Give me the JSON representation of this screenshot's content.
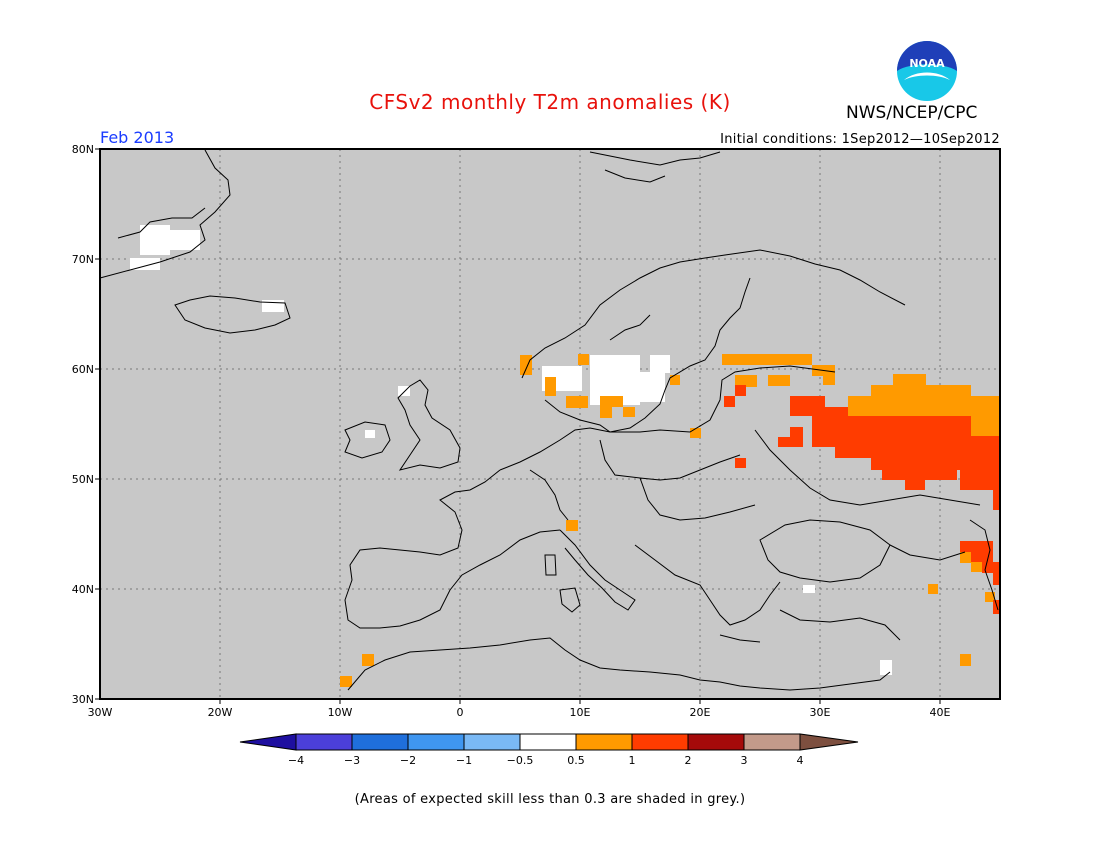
{
  "title": "CFSv2 monthly T2m anomalies (K)",
  "agency": "NWS/NCEP/CPC",
  "logo_text": "NOAA",
  "month": "Feb 2013",
  "initial_conditions": "Initial conditions: 1Sep2012—10Sep2012",
  "footnote": "(Areas of expected skill less than 0.3 are shaded in grey.)",
  "map": {
    "lon_range": [
      -30,
      45
    ],
    "lat_range": [
      30,
      80
    ],
    "lat_labels": [
      "30N",
      "40N",
      "50N",
      "60N",
      "70N",
      "80N"
    ],
    "lon_labels": [
      "30W",
      "20W",
      "10W",
      "0",
      "10E",
      "20E",
      "30E",
      "40E"
    ],
    "background_color": "#c8c8c8",
    "grid": true
  },
  "colorbar": {
    "ticks": [
      "−4",
      "−3",
      "−2",
      "−1",
      "−0.5",
      "0.5",
      "1",
      "2",
      "3",
      "4"
    ],
    "colors": [
      "#1e0fa0",
      "#4b3fd9",
      "#1f6fdb",
      "#3f96f0",
      "#7ab9f5",
      "#ffffff",
      "#ff9a00",
      "#ff3c00",
      "#a50a0a",
      "#c39a8a",
      "#7d4f3f"
    ]
  }
}
